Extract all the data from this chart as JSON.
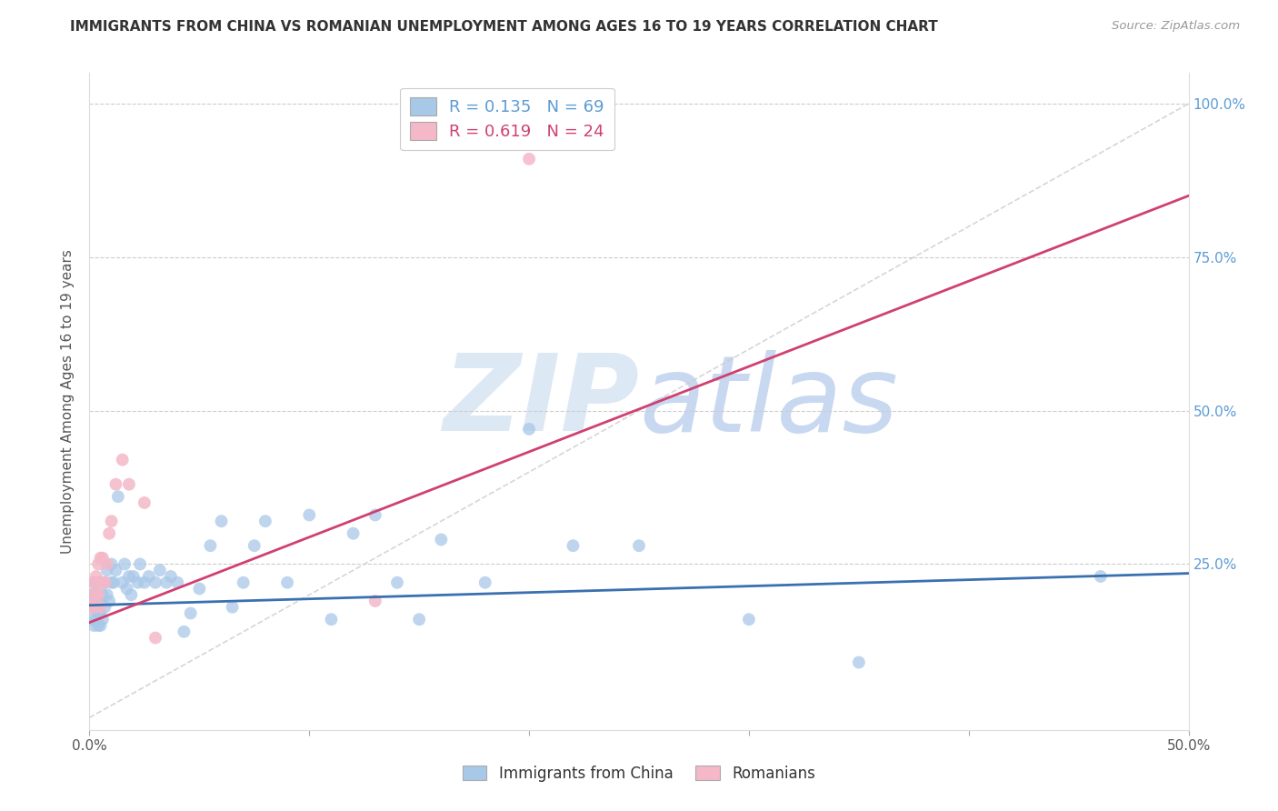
{
  "title": "IMMIGRANTS FROM CHINA VS ROMANIAN UNEMPLOYMENT AMONG AGES 16 TO 19 YEARS CORRELATION CHART",
  "source": "Source: ZipAtlas.com",
  "ylabel": "Unemployment Among Ages 16 to 19 years",
  "xlim": [
    0.0,
    0.5
  ],
  "ylim": [
    -0.02,
    1.05
  ],
  "background_color": "#ffffff",
  "watermark": "ZIPatlas",
  "blue_color": "#a8c8e8",
  "pink_color": "#f4b8c8",
  "blue_line_color": "#3a70b0",
  "pink_line_color": "#d04070",
  "dashed_line_color": "#cccccc",
  "grid_color": "#cccccc",
  "china_x": [
    0.001,
    0.001,
    0.001,
    0.002,
    0.002,
    0.002,
    0.002,
    0.003,
    0.003,
    0.003,
    0.003,
    0.004,
    0.004,
    0.004,
    0.005,
    0.005,
    0.005,
    0.005,
    0.006,
    0.006,
    0.007,
    0.007,
    0.008,
    0.008,
    0.009,
    0.01,
    0.01,
    0.011,
    0.012,
    0.013,
    0.015,
    0.016,
    0.017,
    0.018,
    0.019,
    0.02,
    0.022,
    0.023,
    0.025,
    0.027,
    0.03,
    0.032,
    0.035,
    0.037,
    0.04,
    0.043,
    0.046,
    0.05,
    0.055,
    0.06,
    0.065,
    0.07,
    0.075,
    0.08,
    0.09,
    0.1,
    0.11,
    0.12,
    0.13,
    0.14,
    0.15,
    0.16,
    0.18,
    0.2,
    0.22,
    0.25,
    0.3,
    0.35,
    0.46
  ],
  "china_y": [
    0.16,
    0.18,
    0.2,
    0.15,
    0.18,
    0.2,
    0.22,
    0.16,
    0.18,
    0.2,
    0.22,
    0.15,
    0.17,
    0.2,
    0.15,
    0.17,
    0.19,
    0.22,
    0.16,
    0.2,
    0.18,
    0.22,
    0.2,
    0.24,
    0.19,
    0.22,
    0.25,
    0.22,
    0.24,
    0.36,
    0.22,
    0.25,
    0.21,
    0.23,
    0.2,
    0.23,
    0.22,
    0.25,
    0.22,
    0.23,
    0.22,
    0.24,
    0.22,
    0.23,
    0.22,
    0.14,
    0.17,
    0.21,
    0.28,
    0.32,
    0.18,
    0.22,
    0.28,
    0.32,
    0.22,
    0.33,
    0.16,
    0.3,
    0.33,
    0.22,
    0.16,
    0.29,
    0.22,
    0.47,
    0.28,
    0.28,
    0.16,
    0.09,
    0.23
  ],
  "romanian_x": [
    0.001,
    0.001,
    0.002,
    0.002,
    0.003,
    0.003,
    0.004,
    0.004,
    0.005,
    0.005,
    0.005,
    0.006,
    0.006,
    0.007,
    0.008,
    0.009,
    0.01,
    0.012,
    0.015,
    0.018,
    0.025,
    0.03,
    0.13,
    0.2
  ],
  "romanian_y": [
    0.18,
    0.2,
    0.18,
    0.22,
    0.2,
    0.23,
    0.2,
    0.25,
    0.18,
    0.22,
    0.26,
    0.22,
    0.26,
    0.22,
    0.25,
    0.3,
    0.32,
    0.38,
    0.42,
    0.38,
    0.35,
    0.13,
    0.19,
    0.91
  ],
  "pink_line_x0": 0.0,
  "pink_line_y0": 0.155,
  "pink_line_x1": 0.5,
  "pink_line_y1": 0.85,
  "blue_line_x0": 0.0,
  "blue_line_y0": 0.183,
  "blue_line_x1": 0.5,
  "blue_line_y1": 0.235,
  "yticks": [
    0.0,
    0.25,
    0.5,
    0.75,
    1.0
  ],
  "ytick_labels_right": [
    "",
    "25.0%",
    "50.0%",
    "75.0%",
    "100.0%"
  ]
}
